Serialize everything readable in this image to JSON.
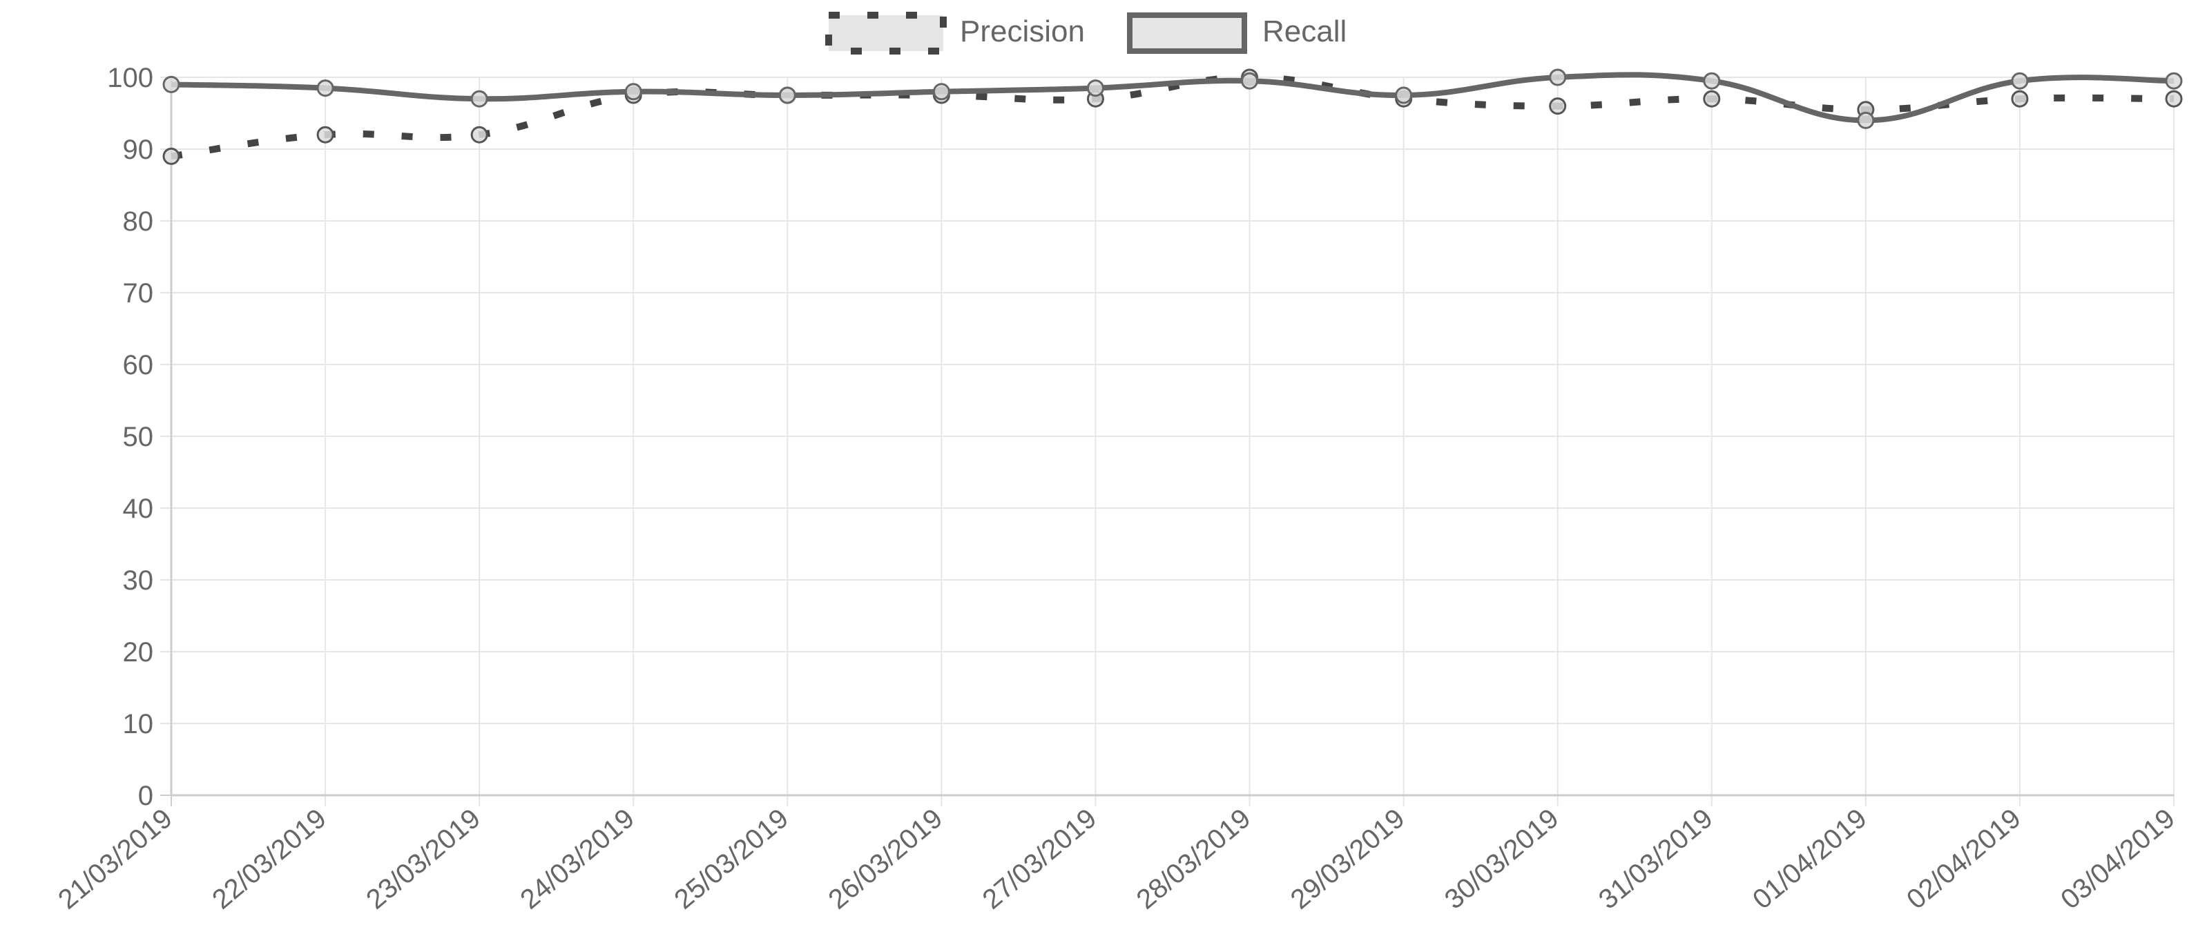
{
  "chart_data": {
    "type": "line",
    "title": "",
    "xlabel": "",
    "ylabel": "",
    "x": [
      "21/03/2019",
      "22/03/2019",
      "23/03/2019",
      "24/03/2019",
      "25/03/2019",
      "26/03/2019",
      "27/03/2019",
      "28/03/2019",
      "29/03/2019",
      "30/03/2019",
      "31/03/2019",
      "01/04/2019",
      "02/04/2019",
      "03/04/2019"
    ],
    "ylim": [
      0,
      100
    ],
    "yticks": [
      0,
      10,
      20,
      30,
      40,
      50,
      60,
      70,
      80,
      90,
      100
    ],
    "grid": true,
    "legend": "top-center",
    "series": [
      {
        "name": "Precision",
        "style": "dotted",
        "color": "#444444",
        "values": [
          89,
          92,
          92,
          97.5,
          97.5,
          97.5,
          97,
          100,
          97,
          96,
          97,
          95.5,
          97,
          97
        ]
      },
      {
        "name": "Recall",
        "style": "solid",
        "color": "#666666",
        "values": [
          99,
          98.5,
          97,
          98,
          97.5,
          98,
          98.5,
          99.5,
          97.5,
          100,
          99.5,
          94,
          99.5,
          99.5
        ]
      }
    ]
  }
}
